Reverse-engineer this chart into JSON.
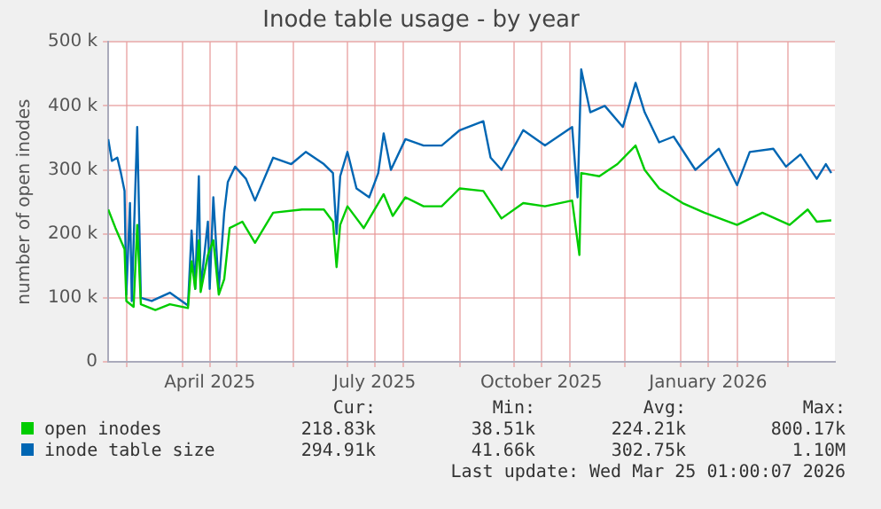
{
  "chart_data": {
    "type": "line",
    "title": "Inode table usage - by year",
    "ylabel": "number of open inodes",
    "xlim": [
      "2025-02-19",
      "2026-03-27"
    ],
    "xticks": [
      {
        "value": "2025-03-01",
        "label": null
      },
      {
        "value": "2025-04-01",
        "label": null
      },
      {
        "value": "2025-04-16",
        "label": "April 2025"
      },
      {
        "value": "2025-05-01",
        "label": null
      },
      {
        "value": "2025-06-01",
        "label": null
      },
      {
        "value": "2025-07-01",
        "label": null
      },
      {
        "value": "2025-07-16",
        "label": "July 2025"
      },
      {
        "value": "2025-08-01",
        "label": null
      },
      {
        "value": "2025-09-01",
        "label": null
      },
      {
        "value": "2025-10-01",
        "label": null
      },
      {
        "value": "2025-10-16",
        "label": "October 2025"
      },
      {
        "value": "2025-11-01",
        "label": null
      },
      {
        "value": "2025-12-01",
        "label": null
      },
      {
        "value": "2026-01-01",
        "label": null
      },
      {
        "value": "2026-01-16",
        "label": "January 2026"
      },
      {
        "value": "2026-02-01",
        "label": null
      },
      {
        "value": "2026-03-01",
        "label": null
      }
    ],
    "ylim": [
      0,
      500000
    ],
    "yticks": [
      0,
      {
        "value": 100000,
        "label": "100 k"
      },
      {
        "value": 200000,
        "label": "200 k"
      },
      {
        "value": 300000,
        "label": "300 k"
      },
      {
        "value": 400000,
        "label": "400 k"
      },
      {
        "value": 500000,
        "label": "500 k"
      }
    ],
    "grid": true,
    "legend": "bottom",
    "marker": "none",
    "line_style": "solid",
    "series": [
      {
        "name": "open inodes",
        "color": "#00cc00",
        "x": [
          "2025-02-19",
          "2025-02-23",
          "2025-02-28",
          "2025-03-01",
          "2025-03-05",
          "2025-03-07",
          "2025-03-09",
          "2025-03-17",
          "2025-03-25",
          "2025-04-04",
          "2025-04-06",
          "2025-04-08",
          "2025-04-10",
          "2025-04-11",
          "2025-04-15",
          "2025-04-18",
          "2025-04-21",
          "2025-04-24",
          "2025-04-27",
          "2025-05-04",
          "2025-05-11",
          "2025-05-21",
          "2025-06-06",
          "2025-06-18",
          "2025-06-23",
          "2025-06-25",
          "2025-06-27",
          "2025-07-01",
          "2025-07-10",
          "2025-07-21",
          "2025-07-26",
          "2025-08-02",
          "2025-08-12",
          "2025-08-22",
          "2025-09-01",
          "2025-09-14",
          "2025-09-24",
          "2025-10-06",
          "2025-10-18",
          "2025-11-02",
          "2025-11-06",
          "2025-11-07",
          "2025-11-17",
          "2025-11-27",
          "2025-12-07",
          "2025-12-12",
          "2025-12-20",
          "2026-01-02",
          "2026-01-14",
          "2026-02-01",
          "2026-02-15",
          "2026-03-02",
          "2026-03-12",
          "2026-03-17",
          "2026-03-25"
        ],
        "values": [
          238000,
          209000,
          176000,
          95000,
          86000,
          214000,
          90000,
          81000,
          90000,
          84000,
          157000,
          114000,
          190000,
          109000,
          167000,
          190000,
          105000,
          129000,
          209000,
          219000,
          186000,
          233000,
          238000,
          238000,
          219000,
          148000,
          214000,
          243000,
          209000,
          262000,
          228000,
          257000,
          243000,
          243000,
          271000,
          267000,
          224000,
          248000,
          243000,
          252000,
          167000,
          295000,
          290000,
          309000,
          338000,
          300000,
          271000,
          248000,
          233000,
          214000,
          233000,
          214000,
          238000,
          219000,
          221000
        ]
      },
      {
        "name": "inode table size",
        "color": "#0066b3",
        "x": [
          "2025-02-19",
          "2025-02-21",
          "2025-02-24",
          "2025-02-26",
          "2025-02-28",
          "2025-03-01",
          "2025-03-03",
          "2025-03-04",
          "2025-03-07",
          "2025-03-09",
          "2025-03-15",
          "2025-03-25",
          "2025-04-04",
          "2025-04-06",
          "2025-04-08",
          "2025-04-10",
          "2025-04-11",
          "2025-04-15",
          "2025-04-16",
          "2025-04-18",
          "2025-04-21",
          "2025-04-24",
          "2025-04-26",
          "2025-04-30",
          "2025-05-06",
          "2025-05-11",
          "2025-05-21",
          "2025-05-31",
          "2025-06-08",
          "2025-06-18",
          "2025-06-23",
          "2025-06-25",
          "2025-06-27",
          "2025-07-01",
          "2025-07-06",
          "2025-07-13",
          "2025-07-18",
          "2025-07-21",
          "2025-07-25",
          "2025-08-02",
          "2025-08-12",
          "2025-08-22",
          "2025-09-01",
          "2025-09-14",
          "2025-09-18",
          "2025-09-24",
          "2025-10-06",
          "2025-10-18",
          "2025-11-02",
          "2025-11-05",
          "2025-11-07",
          "2025-11-12",
          "2025-11-20",
          "2025-11-30",
          "2025-12-07",
          "2025-12-12",
          "2025-12-20",
          "2025-12-28",
          "2026-01-09",
          "2026-01-22",
          "2026-02-01",
          "2026-02-08",
          "2026-02-21",
          "2026-02-28",
          "2026-03-08",
          "2026-03-17",
          "2026-03-22",
          "2026-03-25"
        ],
        "values": [
          348000,
          314000,
          319000,
          295000,
          267000,
          105000,
          248000,
          95000,
          367000,
          100000,
          95000,
          108000,
          88000,
          205000,
          114000,
          290000,
          114000,
          219000,
          114000,
          257000,
          114000,
          233000,
          281000,
          305000,
          286000,
          252000,
          319000,
          309000,
          328000,
          309000,
          295000,
          200000,
          290000,
          328000,
          271000,
          257000,
          295000,
          357000,
          300000,
          348000,
          338000,
          338000,
          362000,
          376000,
          319000,
          300000,
          362000,
          338000,
          367000,
          257000,
          457000,
          390000,
          400000,
          367000,
          436000,
          390000,
          343000,
          352000,
          300000,
          333000,
          276000,
          328000,
          333000,
          305000,
          324000,
          286000,
          309000,
          295000
        ]
      }
    ],
    "annotations": [
      "Cur:",
      "Min:",
      "Avg:",
      "Max:",
      "218.83k",
      "38.51k",
      "224.21k",
      "800.17k",
      "294.91k",
      "41.66k",
      "302.75k",
      "1.10M",
      "Last update: Wed Mar 25 01:00:07 2026"
    ]
  }
}
